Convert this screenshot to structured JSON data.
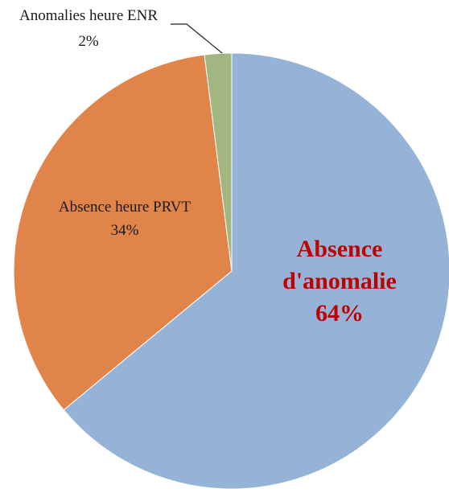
{
  "chart_data": {
    "type": "pie",
    "categories": [
      "Absence d'anomalie",
      "Absence heure PRVT",
      "Anomalies heure ENR"
    ],
    "values": [
      64,
      34,
      2
    ],
    "value_labels": [
      "64%",
      "34%",
      "2%"
    ],
    "colors": [
      "#95b3d7",
      "#e0844a",
      "#a2b681"
    ]
  }
}
